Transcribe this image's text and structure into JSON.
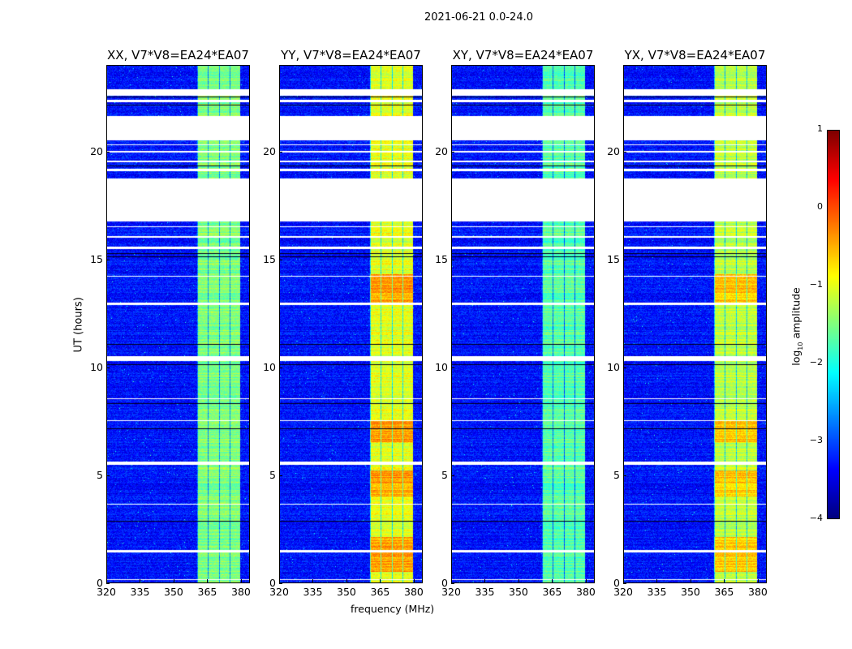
{
  "figure_title": "2021-06-21 0.0-24.0",
  "chart_data": {
    "type": "heatmap",
    "title": "2021-06-21 0.0-24.0",
    "xlabel": "frequency (MHz)",
    "ylabel": "UT (hours)",
    "xlim": [
      320,
      384
    ],
    "ylim": [
      0,
      24
    ],
    "xticks": [
      "320",
      "335",
      "350",
      "365",
      "380"
    ],
    "yticks": [
      "0",
      "5",
      "10",
      "15",
      "20"
    ],
    "panels": [
      {
        "title": "XX, V7*V8=EA24*EA07",
        "band_level_log10": -1.5
      },
      {
        "title": "YY, V7*V8=EA24*EA07",
        "band_level_log10": -1.0
      },
      {
        "title": "XY, V7*V8=EA24*EA07",
        "band_level_log10": -1.7
      },
      {
        "title": "YX, V7*V8=EA24*EA07",
        "band_level_log10": -1.2
      }
    ],
    "background_level_log10": -3.3,
    "active_band_mhz": [
      360.5,
      380
    ],
    "flagged_time_ranges_hours": [
      [
        0.1,
        0.15
      ],
      [
        1.4,
        1.5
      ],
      [
        3.6,
        3.65
      ],
      [
        5.45,
        5.6
      ],
      [
        7.5,
        7.55
      ],
      [
        8.5,
        8.55
      ],
      [
        10.3,
        10.5
      ],
      [
        12.9,
        13.0
      ],
      [
        14.2,
        14.25
      ],
      [
        15.5,
        15.6
      ],
      [
        16.0,
        16.1
      ],
      [
        16.5,
        16.55
      ],
      [
        16.75,
        18.75
      ],
      [
        19.1,
        19.2
      ],
      [
        19.5,
        19.6
      ],
      [
        19.95,
        20.05
      ],
      [
        20.3,
        20.35
      ],
      [
        20.55,
        21.65
      ],
      [
        22.3,
        22.4
      ],
      [
        22.6,
        22.9
      ]
    ],
    "colorbar": {
      "label": "log10 amplitude",
      "range": [
        -4,
        1
      ],
      "ticks": [
        "1",
        "0",
        "−1",
        "−2",
        "−3",
        "−4"
      ],
      "colormap": "jet"
    }
  }
}
